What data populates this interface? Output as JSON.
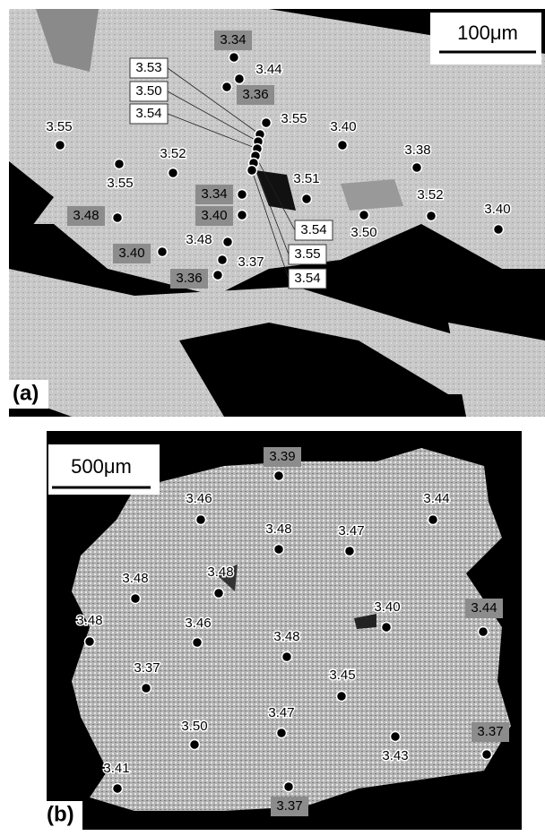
{
  "panels": [
    {
      "label": "(a)",
      "scale_bar": "100μm",
      "points": [
        "3.34",
        "3.44",
        "3.36",
        "3.55",
        "3.40",
        "3.38",
        "3.55",
        "3.52",
        "3.55",
        "3.51",
        "3.52",
        "3.40",
        "3.48",
        "3.34",
        "3.40",
        "3.48",
        "3.50",
        "3.40",
        "3.37",
        "3.36",
        "3.53",
        "3.50",
        "3.54",
        "3.54",
        "3.55",
        "3.54"
      ]
    },
    {
      "label": "(b)",
      "scale_bar": "500μm",
      "points": [
        "3.39",
        "3.46",
        "3.44",
        "3.48",
        "3.47",
        "3.48",
        "3.48",
        "3.40",
        "3.44",
        "3.48",
        "3.46",
        "3.48",
        "3.37",
        "3.45",
        "3.47",
        "3.50",
        "3.43",
        "3.37",
        "3.41",
        "3.37"
      ]
    }
  ]
}
